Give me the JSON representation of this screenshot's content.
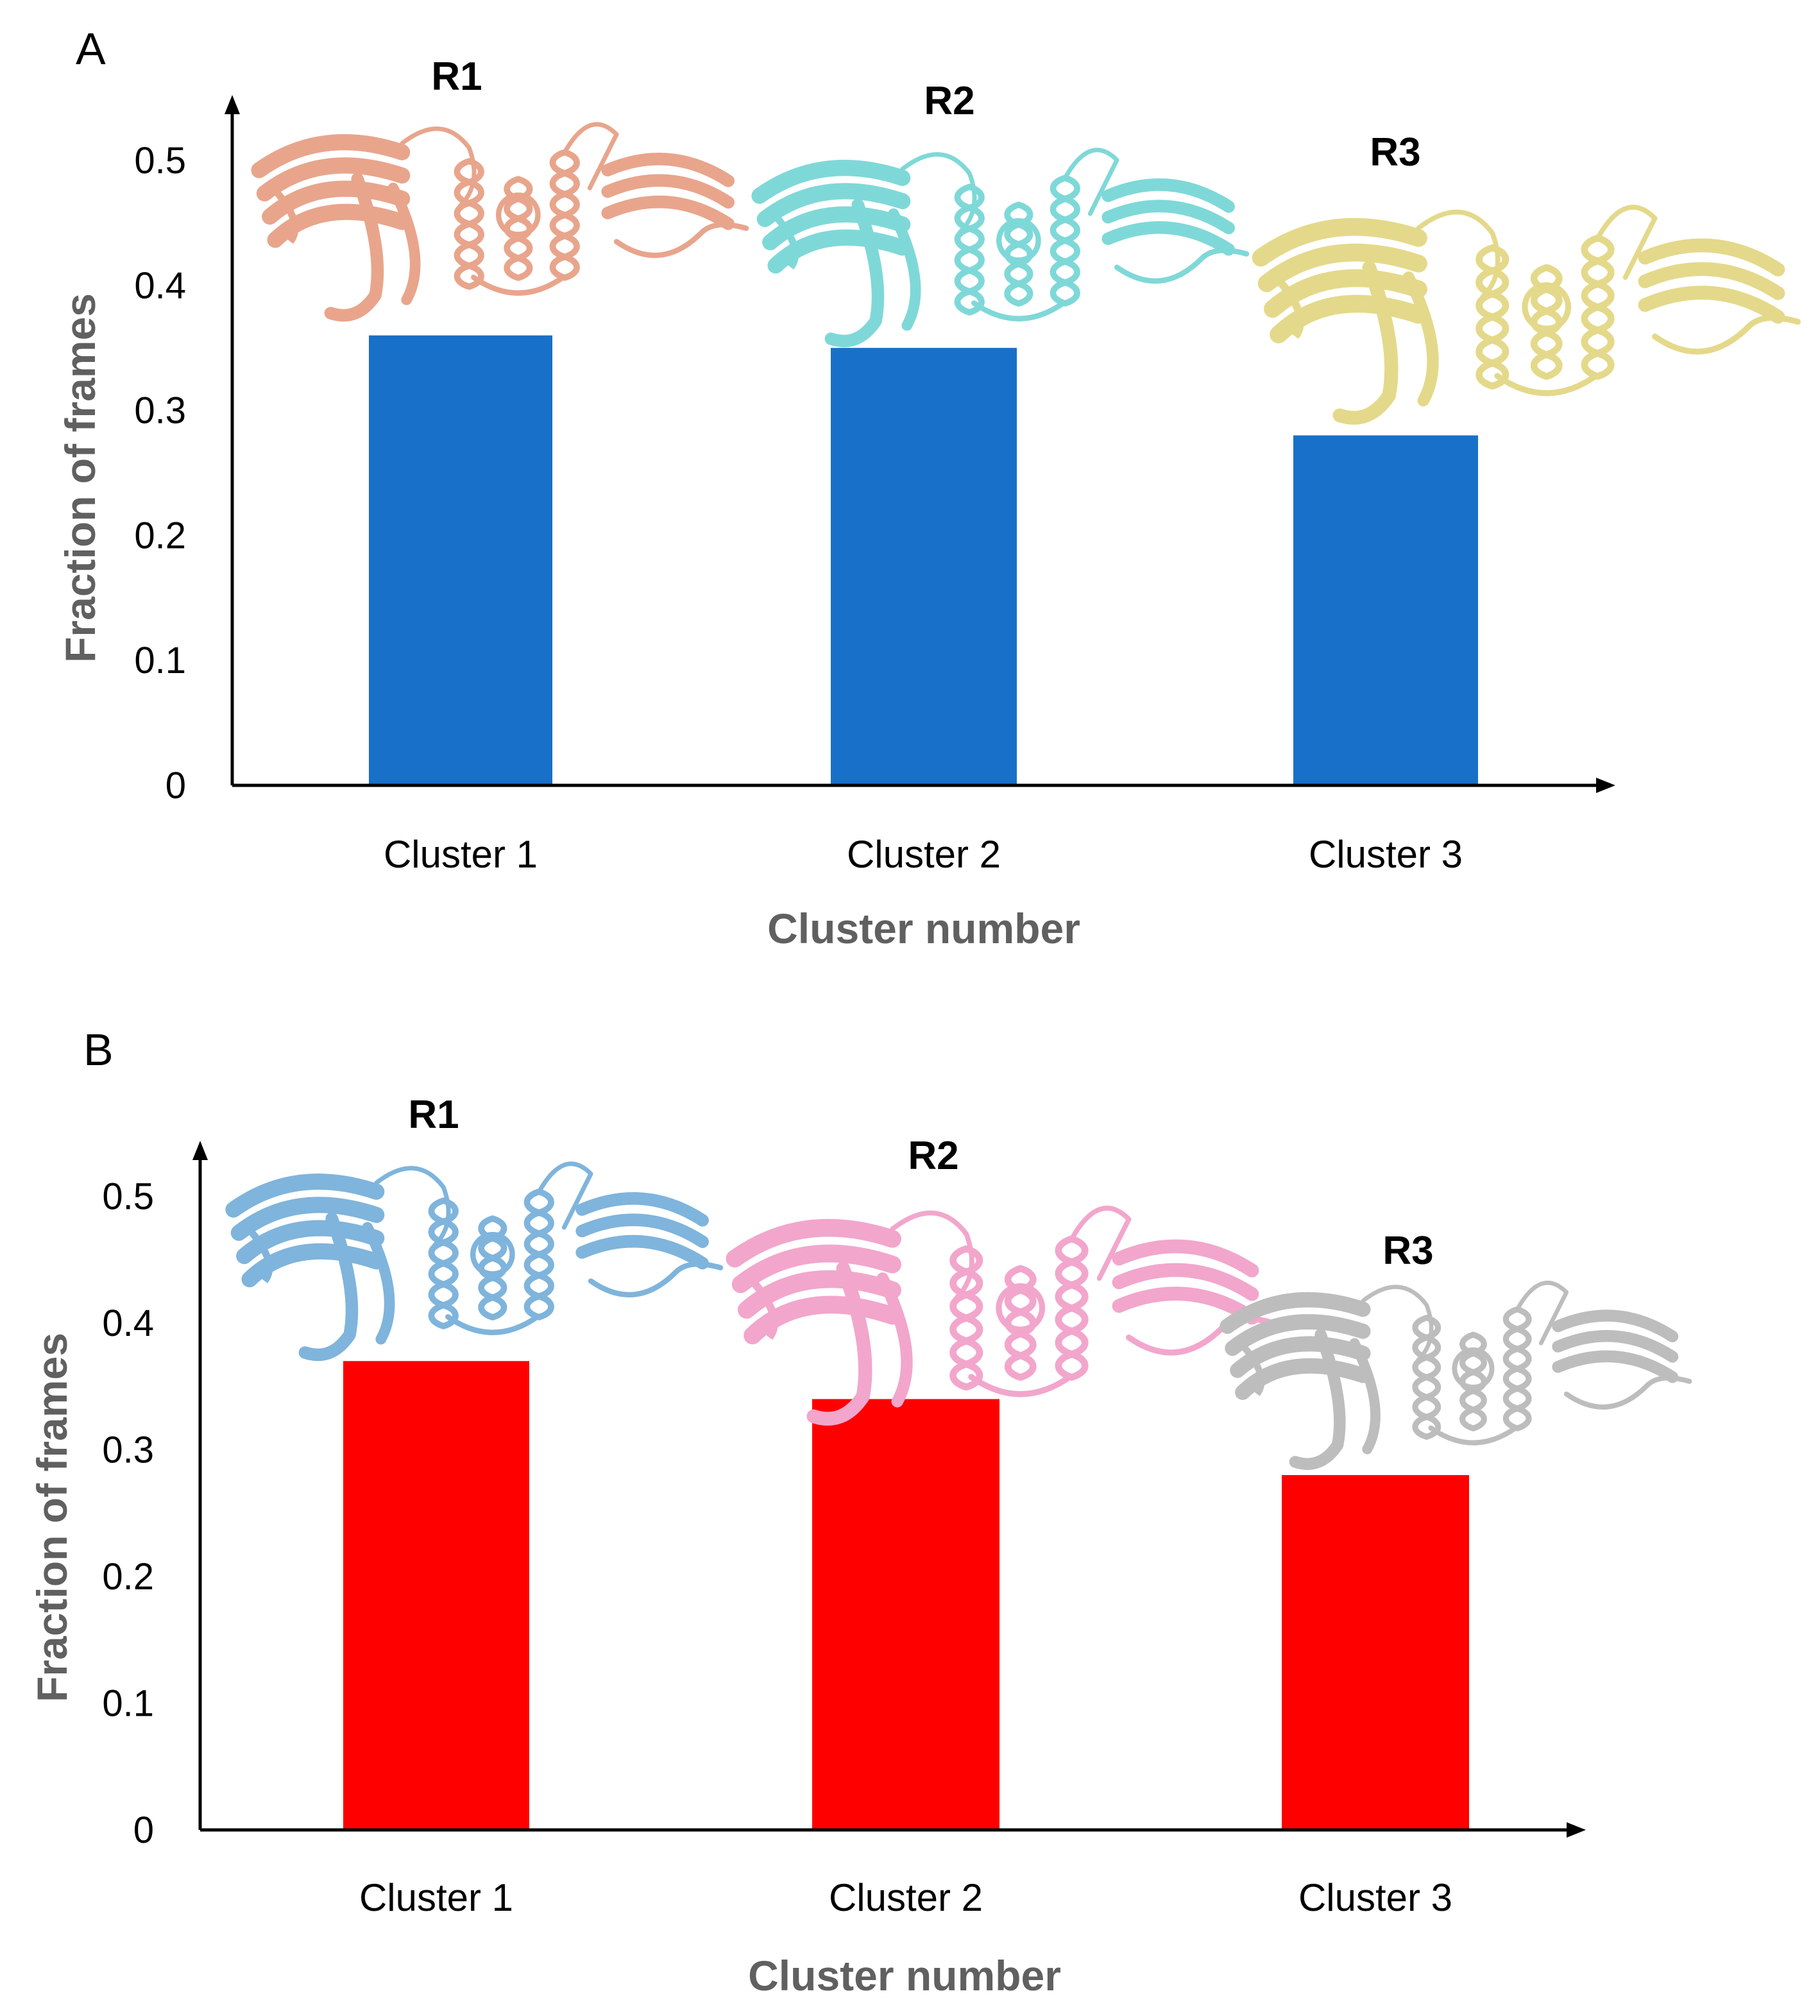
{
  "chart_data": [
    {
      "panel": "A",
      "type": "bar",
      "categories": [
        "Cluster 1",
        "Cluster 2",
        "Cluster 3"
      ],
      "values": [
        0.36,
        0.35,
        0.28
      ],
      "bar_color": "#1970C8",
      "xlabel": "Cluster number",
      "ylabel": "Fraction of frames",
      "ylim": [
        0,
        0.55
      ],
      "yticks": [
        "0",
        "0.1",
        "0.2",
        "0.3",
        "0.4",
        "0.5"
      ],
      "structures": [
        {
          "label": "R1",
          "color": "#E8A58C",
          "icon": "protein-structure-icon"
        },
        {
          "label": "R2",
          "color": "#7FD8D8",
          "icon": "protein-structure-icon"
        },
        {
          "label": "R3",
          "color": "#E4D98A",
          "icon": "protein-structure-icon"
        }
      ]
    },
    {
      "panel": "B",
      "type": "bar",
      "categories": [
        "Cluster 1",
        "Cluster 2",
        "Cluster 3"
      ],
      "values": [
        0.37,
        0.34,
        0.28
      ],
      "bar_color": "#FF0000",
      "xlabel": "Cluster number",
      "ylabel": "Fraction of frames",
      "ylim": [
        0,
        0.55
      ],
      "yticks": [
        "0",
        "0.1",
        "0.2",
        "0.3",
        "0.4",
        "0.5"
      ],
      "structures": [
        {
          "label": "R1",
          "color": "#7FB4DC",
          "icon": "protein-structure-icon"
        },
        {
          "label": "R2",
          "color": "#F2A6CC",
          "icon": "protein-structure-icon"
        },
        {
          "label": "R3",
          "color": "#BDBDBD",
          "icon": "protein-structure-icon"
        }
      ]
    }
  ]
}
